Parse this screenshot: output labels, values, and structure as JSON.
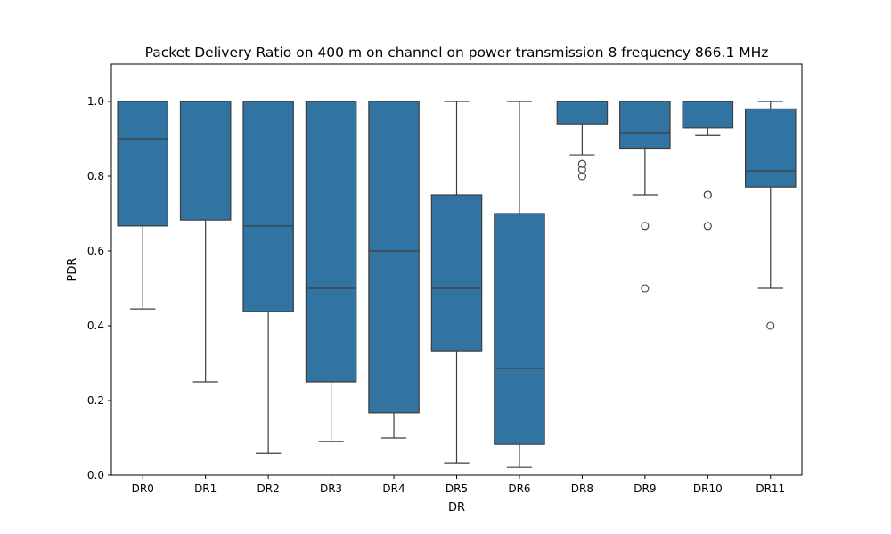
{
  "chart_data": {
    "type": "box",
    "title": "Packet Delivery Ratio on 400 m on channel on power transmission 8 frequency 866.1 MHz",
    "xlabel": "DR",
    "ylabel": "PDR",
    "ylim": [
      0,
      1.1
    ],
    "yticks": [
      "0.0",
      "0.2",
      "0.4",
      "0.6",
      "0.8",
      "1.0"
    ],
    "ytick_values": [
      0,
      0.2,
      0.4,
      0.6,
      0.8,
      1.0
    ],
    "box_color": "#3274a1",
    "line_color": "#3d3d3d",
    "grid": false,
    "categories": [
      "DR0",
      "DR1",
      "DR2",
      "DR3",
      "DR4",
      "DR5",
      "DR6",
      "DR8",
      "DR9",
      "DR10",
      "DR11"
    ],
    "boxes": [
      {
        "category": "DR0",
        "whisker_low": 0.445,
        "q1": 0.667,
        "median": 0.9,
        "q3": 1.0,
        "whisker_high": 1.0,
        "outliers": []
      },
      {
        "category": "DR1",
        "whisker_low": 0.25,
        "q1": 0.683,
        "median": 1.0,
        "q3": 1.0,
        "whisker_high": 1.0,
        "outliers": []
      },
      {
        "category": "DR2",
        "whisker_low": 0.059,
        "q1": 0.438,
        "median": 0.667,
        "q3": 1.0,
        "whisker_high": 1.0,
        "outliers": []
      },
      {
        "category": "DR3",
        "whisker_low": 0.09,
        "q1": 0.25,
        "median": 0.5,
        "q3": 1.0,
        "whisker_high": 1.0,
        "outliers": []
      },
      {
        "category": "DR4",
        "whisker_low": 0.1,
        "q1": 0.167,
        "median": 0.6,
        "q3": 1.0,
        "whisker_high": 1.0,
        "outliers": []
      },
      {
        "category": "DR5",
        "whisker_low": 0.033,
        "q1": 0.333,
        "median": 0.5,
        "q3": 0.75,
        "whisker_high": 1.0,
        "outliers": []
      },
      {
        "category": "DR6",
        "whisker_low": 0.021,
        "q1": 0.083,
        "median": 0.286,
        "q3": 0.7,
        "whisker_high": 1.0,
        "outliers": []
      },
      {
        "category": "DR8",
        "whisker_low": 0.857,
        "q1": 0.94,
        "median": 1.0,
        "q3": 1.0,
        "whisker_high": 1.0,
        "outliers": [
          0.833,
          0.818,
          0.8
        ]
      },
      {
        "category": "DR9",
        "whisker_low": 0.75,
        "q1": 0.875,
        "median": 0.917,
        "q3": 1.0,
        "whisker_high": 1.0,
        "outliers": [
          0.667,
          0.5
        ]
      },
      {
        "category": "DR10",
        "whisker_low": 0.909,
        "q1": 0.929,
        "median": 1.0,
        "q3": 1.0,
        "whisker_high": 1.0,
        "outliers": [
          0.75,
          0.75,
          0.667
        ]
      },
      {
        "category": "DR11",
        "whisker_low": 0.5,
        "q1": 0.771,
        "median": 0.814,
        "q3": 0.98,
        "whisker_high": 1.0,
        "outliers": [
          0.4
        ]
      }
    ]
  }
}
